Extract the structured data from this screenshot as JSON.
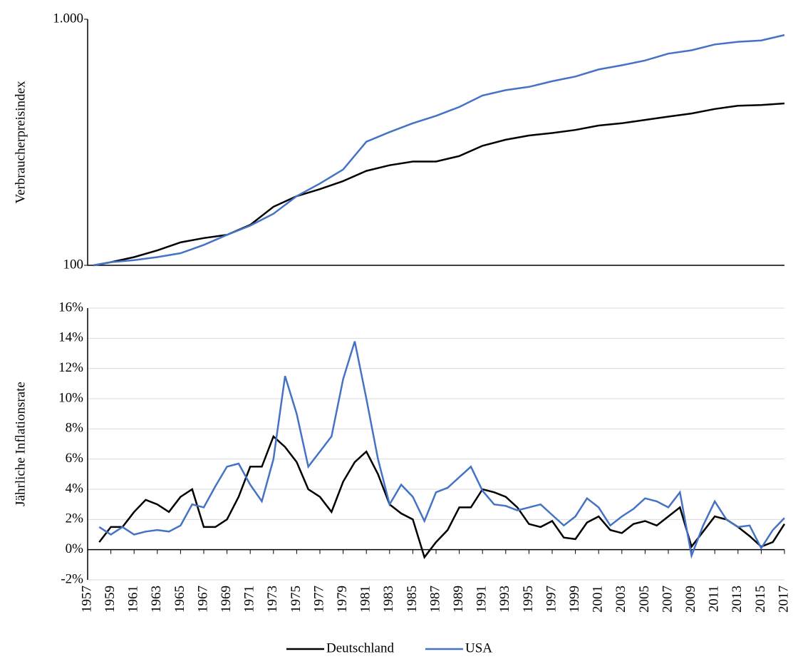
{
  "chart_data": [
    {
      "type": "line",
      "y_label": "Verbraucherpreisindex",
      "log_scale": true,
      "grid": false,
      "xlim": [
        1957,
        2017
      ],
      "ylim": [
        100,
        1000
      ],
      "yticks": [
        100,
        {
          "value": 1000,
          "label": "1.000"
        }
      ],
      "x": [
        1957.5,
        1959,
        1961,
        1963,
        1965,
        1967,
        1969,
        1971,
        1973,
        1975,
        1977,
        1979,
        1981,
        1983,
        1985,
        1987,
        1989,
        1991,
        1993,
        1995,
        1997,
        1999,
        2001,
        2003,
        2005,
        2007,
        2009,
        2011,
        2013,
        2015,
        2017
      ],
      "series": [
        {
          "color": "#000000",
          "values": [
            100,
            103,
            108,
            115,
            124,
            129,
            133,
            146,
            173,
            191,
            204,
            220,
            242,
            255,
            264,
            264,
            278,
            306,
            324,
            337,
            345,
            355,
            370,
            378,
            390,
            402,
            414,
            432,
            445,
            448,
            455
          ]
        },
        {
          "color": "#4472c4",
          "values": [
            100,
            103,
            105,
            108,
            112,
            121,
            133,
            145,
            162,
            191,
            215,
            245,
            318,
            348,
            378,
            405,
            440,
            490,
            515,
            531,
            560,
            585,
            625,
            650,
            680,
            725,
            748,
            790,
            810,
            820,
            863
          ]
        }
      ]
    },
    {
      "type": "line",
      "y_label": "Jährliche Inflationsrate",
      "log_scale": false,
      "grid": true,
      "legend": "bottom",
      "xlim": [
        1957,
        2017
      ],
      "ylim": [
        -2,
        16
      ],
      "yticks": [
        {
          "value": -2,
          "label": "-2%"
        },
        {
          "value": 0,
          "label": "0%"
        },
        {
          "value": 2,
          "label": "2%"
        },
        {
          "value": 4,
          "label": "4%"
        },
        {
          "value": 6,
          "label": "6%"
        },
        {
          "value": 8,
          "label": "8%"
        },
        {
          "value": 10,
          "label": "10%"
        },
        {
          "value": 12,
          "label": "12%"
        },
        {
          "value": 14,
          "label": "14%"
        },
        {
          "value": 16,
          "label": "16%"
        }
      ],
      "xticks": [
        1957,
        1959,
        1961,
        1963,
        1965,
        1967,
        1969,
        1971,
        1973,
        1975,
        1977,
        1979,
        1981,
        1983,
        1985,
        1987,
        1989,
        1991,
        1993,
        1995,
        1997,
        1999,
        2001,
        2003,
        2005,
        2007,
        2009,
        2011,
        2013,
        2015,
        2017
      ],
      "x": [
        1958,
        1959,
        1960,
        1961,
        1962,
        1963,
        1964,
        1965,
        1966,
        1967,
        1968,
        1969,
        1970,
        1971,
        1972,
        1973,
        1974,
        1975,
        1976,
        1977,
        1978,
        1979,
        1980,
        1981,
        1982,
        1983,
        1984,
        1985,
        1986,
        1987,
        1988,
        1989,
        1990,
        1991,
        1992,
        1993,
        1994,
        1995,
        1996,
        1997,
        1998,
        1999,
        2000,
        2001,
        2002,
        2003,
        2004,
        2005,
        2006,
        2007,
        2008,
        2009,
        2010,
        2011,
        2012,
        2013,
        2014,
        2015,
        2016,
        2017
      ],
      "series": [
        {
          "name": "Deutschland",
          "color": "#000000",
          "values": [
            0.5,
            1.5,
            1.5,
            2.5,
            3.3,
            3.0,
            2.5,
            3.5,
            4.0,
            1.5,
            1.5,
            2.0,
            3.5,
            5.5,
            5.5,
            7.5,
            6.8,
            5.8,
            4.0,
            3.5,
            2.5,
            4.5,
            5.8,
            6.5,
            5.0,
            3.0,
            2.4,
            2.0,
            -0.5,
            0.5,
            1.3,
            2.8,
            2.8,
            4.0,
            3.8,
            3.5,
            2.8,
            1.7,
            1.5,
            1.9,
            0.8,
            0.7,
            1.8,
            2.2,
            1.3,
            1.1,
            1.7,
            1.9,
            1.6,
            2.2,
            2.8,
            0.2,
            1.2,
            2.2,
            2.0,
            1.5,
            0.9,
            0.2,
            0.5,
            1.7
          ]
        },
        {
          "name": "USA",
          "color": "#4472c4",
          "values": [
            1.5,
            1.0,
            1.5,
            1.0,
            1.2,
            1.3,
            1.2,
            1.6,
            3.0,
            2.8,
            4.2,
            5.5,
            5.7,
            4.3,
            3.2,
            6.0,
            11.5,
            9.0,
            5.5,
            6.5,
            7.5,
            11.3,
            13.8,
            10.0,
            6.0,
            3.0,
            4.3,
            3.5,
            1.9,
            3.8,
            4.1,
            4.8,
            5.5,
            3.9,
            3.0,
            2.9,
            2.6,
            2.8,
            3.0,
            2.3,
            1.6,
            2.2,
            3.4,
            2.8,
            1.6,
            2.2,
            2.7,
            3.4,
            3.2,
            2.8,
            3.8,
            -0.4,
            1.6,
            3.2,
            2.0,
            1.5,
            1.6,
            0.1,
            1.3,
            2.1
          ]
        }
      ]
    }
  ]
}
